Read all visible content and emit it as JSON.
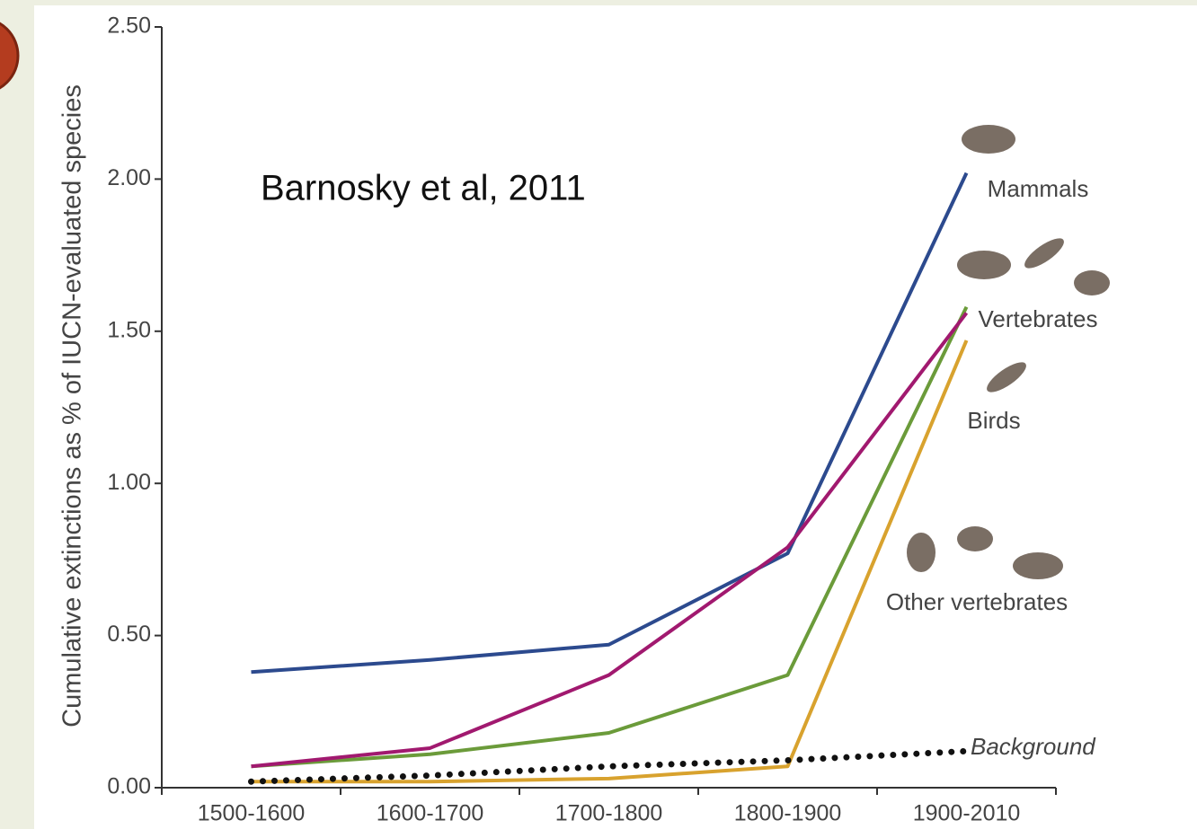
{
  "chart_data": {
    "type": "line",
    "annotation": "Barnosky et al, 2011",
    "y_label": "Cumulative extinctions as % of IUCN-evaluated species",
    "categories": [
      "1500-1600",
      "1600-1700",
      "1700-1800",
      "1800-1900",
      "1900-2010"
    ],
    "ylim": [
      0,
      2.5
    ],
    "yticks": [
      {
        "value": 0,
        "label": "0.00"
      },
      {
        "value": 0.5,
        "label": "0.50"
      },
      {
        "value": 1,
        "label": "1.00"
      },
      {
        "value": 1.5,
        "label": "1.50"
      },
      {
        "value": 2,
        "label": "2.00"
      },
      {
        "value": 2.5,
        "label": "2.50"
      }
    ],
    "series": [
      {
        "name": "Mammals",
        "color": "#2c4a8e",
        "values": [
          0.38,
          0.42,
          0.47,
          0.77,
          2.02
        ]
      },
      {
        "name": "Vertebrates",
        "color": "#6b9b3a",
        "values": [
          0.07,
          0.11,
          0.18,
          0.37,
          1.58
        ]
      },
      {
        "name": "Birds",
        "color": "#a1196f",
        "values": [
          0.07,
          0.13,
          0.37,
          0.79,
          1.56
        ]
      },
      {
        "name": "Other vertebrates",
        "color": "#d8a22e",
        "values": [
          0.02,
          0.02,
          0.03,
          0.07,
          1.47
        ]
      },
      {
        "name": "Background",
        "color": "#111111",
        "dotted": true,
        "values": [
          0.02,
          0.04,
          0.07,
          0.09,
          0.12
        ]
      }
    ]
  }
}
